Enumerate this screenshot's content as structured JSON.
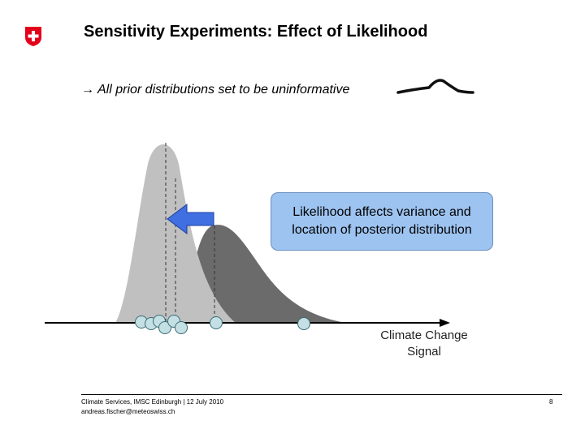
{
  "slide": {
    "title": "Sensitivity Experiments: Effect of Likelihood",
    "subtitle_arrow": "→",
    "subtitle": "All prior distributions set to be uninformative",
    "callout": "Likelihood affects variance and location of posterior distribution",
    "axis_label": "Climate Change\nSignal",
    "logo_icon": "swiss-cross-icon"
  },
  "colors": {
    "logo_red": "#e3001b",
    "posterior": "#c0c0c0",
    "likelihood": "#6b6b6b",
    "arrow": "#3f6fe0",
    "callout": "#9dc3f0",
    "points": "#c4e0e4"
  },
  "footer": {
    "left": "Climate Services, IMSC Edinburgh | 12 July 2010\nandreas.fischer@meteoswiss.ch",
    "page_number": "8"
  }
}
